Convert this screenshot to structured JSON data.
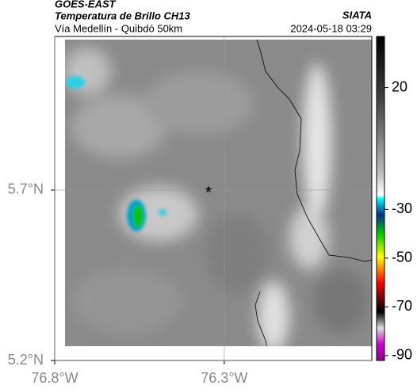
{
  "header": {
    "source": "GOES-EAST",
    "title": "Temperatura de Brillo CH13",
    "agency": "SIATA",
    "subtitle": "Vía Medellín - Quibdó 50km",
    "timestamp": "2024-05-18 03:29"
  },
  "map": {
    "xlim": [
      -76.8,
      -75.865
    ],
    "ylim": [
      5.2,
      6.151
    ],
    "xticks": [
      {
        "value": -76.8,
        "label": "76.8°W"
      },
      {
        "value": -76.3,
        "label": "76.3°W"
      }
    ],
    "yticks": [
      {
        "value": 5.7,
        "label": "5.7°N"
      },
      {
        "value": 5.2,
        "label": "5.2°N"
      }
    ],
    "grid": true
  },
  "colorbar": {
    "clim": [
      -92,
      41
    ],
    "ticks": [
      20,
      -30,
      -50,
      -70,
      -90
    ]
  }
}
